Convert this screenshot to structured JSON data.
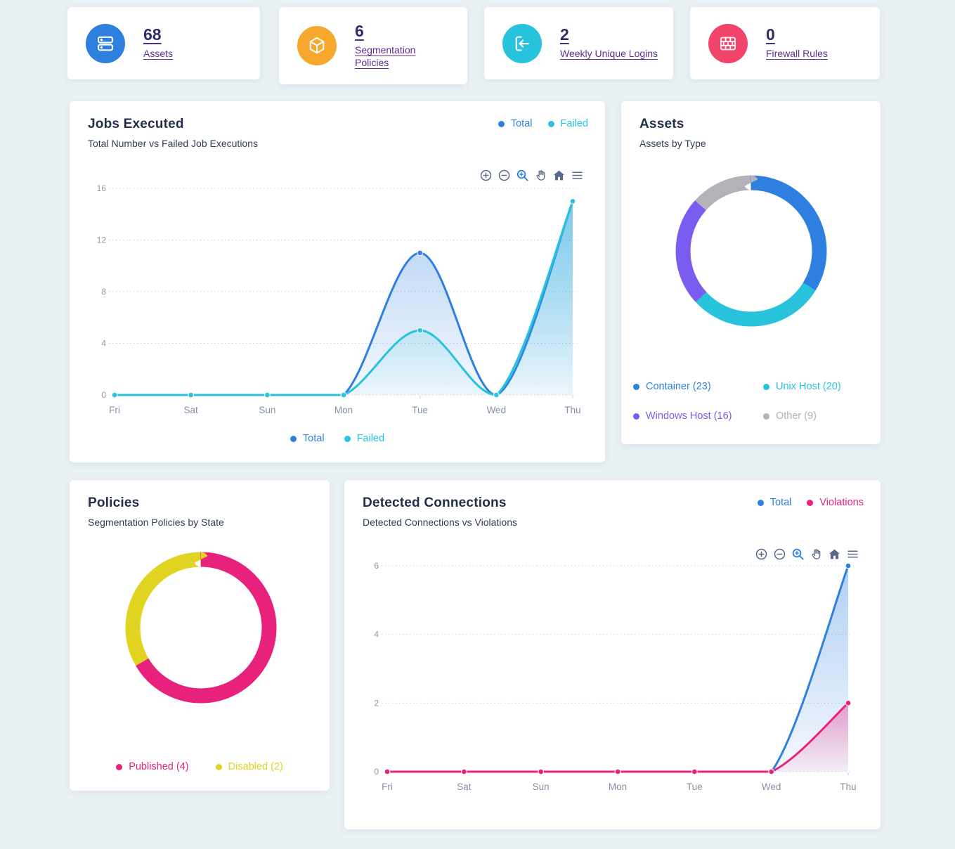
{
  "page": {
    "background": "#e9f1f5"
  },
  "colors": {
    "accent_blue": "#2e80de",
    "accent_cyan": "#27c3dc",
    "accent_orange": "#f7a82c",
    "accent_rose": "#f2436b",
    "accent_magenta": "#e8217c",
    "accent_yellow": "#e1d420",
    "accent_purple": "#7a5cf0",
    "accent_gray": "#b2b2b8",
    "link_number": "#332b66",
    "link_label": "#5e2d91",
    "title_navy": "#242e4c",
    "modebar_gray": "#5a6a88",
    "modebar_active": "#2d7fe4"
  },
  "stat_cards": [
    {
      "value": "68",
      "label": "Assets",
      "icon": "server-icon",
      "accent": "#2e80de"
    },
    {
      "value": "6",
      "label": "Segmentation Policies",
      "icon": "cube-icon",
      "accent": "#f7a82c"
    },
    {
      "value": "2",
      "label": "Weekly Unique Logins",
      "icon": "login-icon",
      "accent": "#27c3dc"
    },
    {
      "value": "0",
      "label": "Firewall Rules",
      "icon": "firewall-icon",
      "accent": "#f2436b"
    }
  ],
  "modebar_icons": [
    "zoom-in-icon",
    "zoom-out-icon",
    "box-zoom-icon",
    "pan-icon",
    "reset-home-icon",
    "menu-icon"
  ],
  "chart_data": [
    {
      "type": "line",
      "title": "Jobs Executed",
      "subtitle": "Total Number vs Failed Job Executions",
      "categories": [
        "Fri",
        "Sat",
        "Sun",
        "Mon",
        "Tue",
        "Wed",
        "Thu"
      ],
      "series": [
        {
          "name": "Total",
          "color": "#2e7fe0",
          "values": [
            0,
            0,
            0,
            0,
            11,
            0,
            15
          ]
        },
        {
          "name": "Failed",
          "color": "#27c3dc",
          "values": [
            0,
            0,
            0,
            0,
            5,
            0,
            15
          ]
        }
      ],
      "ylim": [
        0,
        16
      ],
      "yticks": [
        0,
        4,
        8,
        12,
        16
      ],
      "grid": true,
      "legend_position": "top-right and bottom-center"
    },
    {
      "type": "pie",
      "title": "Assets",
      "subtitle": "Assets by Type",
      "labels": [
        "Container",
        "Unix Host",
        "Windows Host",
        "Other"
      ],
      "values": [
        23,
        20,
        16,
        9
      ],
      "colors": [
        "#2e7fe0",
        "#27c3dc",
        "#7a5cf0",
        "#b2b2b8"
      ],
      "legend": [
        "Container (23)",
        "Unix Host (20)",
        "Windows Host (16)",
        "Other (9)"
      ],
      "legend_position": "bottom"
    },
    {
      "type": "pie",
      "title": "Policies",
      "subtitle": "Segmentation Policies by State",
      "labels": [
        "Published",
        "Disabled"
      ],
      "values": [
        4,
        2
      ],
      "colors": [
        "#e8217c",
        "#e1d420"
      ],
      "legend": [
        "Published (4)",
        "Disabled (2)"
      ],
      "legend_position": "bottom"
    },
    {
      "type": "line",
      "title": "Detected Connections",
      "subtitle": "Detected Connections vs Violations",
      "categories": [
        "Fri",
        "Sat",
        "Sun",
        "Mon",
        "Tue",
        "Wed",
        "Thu"
      ],
      "series": [
        {
          "name": "Total",
          "color": "#2e7fe0",
          "values": [
            0,
            0,
            0,
            0,
            0,
            0,
            6
          ]
        },
        {
          "name": "Violations",
          "color": "#e8217c",
          "values": [
            0,
            0,
            0,
            0,
            0,
            0,
            2
          ]
        }
      ],
      "ylim": [
        0,
        6
      ],
      "yticks": [
        0,
        2,
        4,
        6
      ],
      "grid": true,
      "legend_position": "top-right"
    }
  ]
}
